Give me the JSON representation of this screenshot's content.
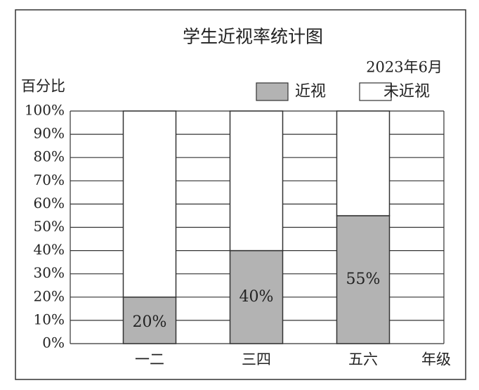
{
  "chart_data": {
    "type": "stacked-bar",
    "title": "学生近视率统计图",
    "subtitle": "2023年6月",
    "y_label": "百分比",
    "x_label": "年级",
    "categories": [
      "一二",
      "三四",
      "五六"
    ],
    "series": [
      {
        "name": "近视",
        "color": "#b3b3b3",
        "values": [
          20,
          40,
          55
        ],
        "value_labels": [
          "20%",
          "40%",
          "55%"
        ]
      },
      {
        "name": "未近视",
        "color": "#ffffff",
        "values": [
          80,
          60,
          45
        ]
      }
    ],
    "ylim": [
      0,
      100
    ],
    "yticks": [
      {
        "value": 0,
        "label": "0%"
      },
      {
        "value": 10,
        "label": "10%"
      },
      {
        "value": 20,
        "label": "20%"
      },
      {
        "value": 30,
        "label": "30%"
      },
      {
        "value": 40,
        "label": "40%"
      },
      {
        "value": 50,
        "label": "50%"
      },
      {
        "value": 60,
        "label": "60%"
      },
      {
        "value": 70,
        "label": "70%"
      },
      {
        "value": 80,
        "label": "80%"
      },
      {
        "value": 90,
        "label": "90%"
      },
      {
        "value": 100,
        "label": "100%"
      }
    ],
    "grid": true
  }
}
